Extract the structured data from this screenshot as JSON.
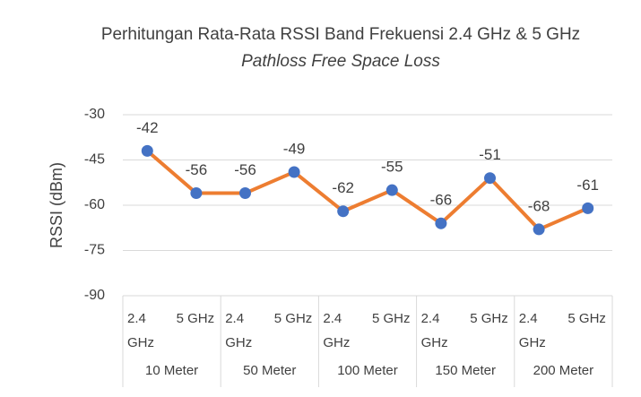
{
  "chart_data": {
    "type": "line",
    "title": "Perhitungan Rata-Rata RSSI Band Frekuensi 2.4 GHz & 5 GHz",
    "title_italic": "Pathloss Free Space Loss",
    "y_label": "RSSI (dBm)",
    "categories": [
      "2.4 GHz",
      "5 GHz",
      "2.4 GHz",
      "5 GHz",
      "2.4 GHz",
      "5 GHz",
      "2.4 GHz",
      "5 GHz",
      "2.4 GHz",
      "5 GHz"
    ],
    "groups": [
      "10 Meter",
      "50 Meter",
      "100 Meter",
      "150 Meter",
      "200 Meter"
    ],
    "series": [
      {
        "name": "RSSI",
        "color": "#ed7d31",
        "marker_color": "#4472c4",
        "values": [
          -42,
          -56,
          -56,
          -49,
          -62,
          -55,
          -66,
          -51,
          -68,
          -61
        ]
      }
    ],
    "ylim": [
      -90,
      -30
    ],
    "yticks": [
      -90,
      -75,
      -60,
      -45,
      -30
    ],
    "grid": true
  }
}
